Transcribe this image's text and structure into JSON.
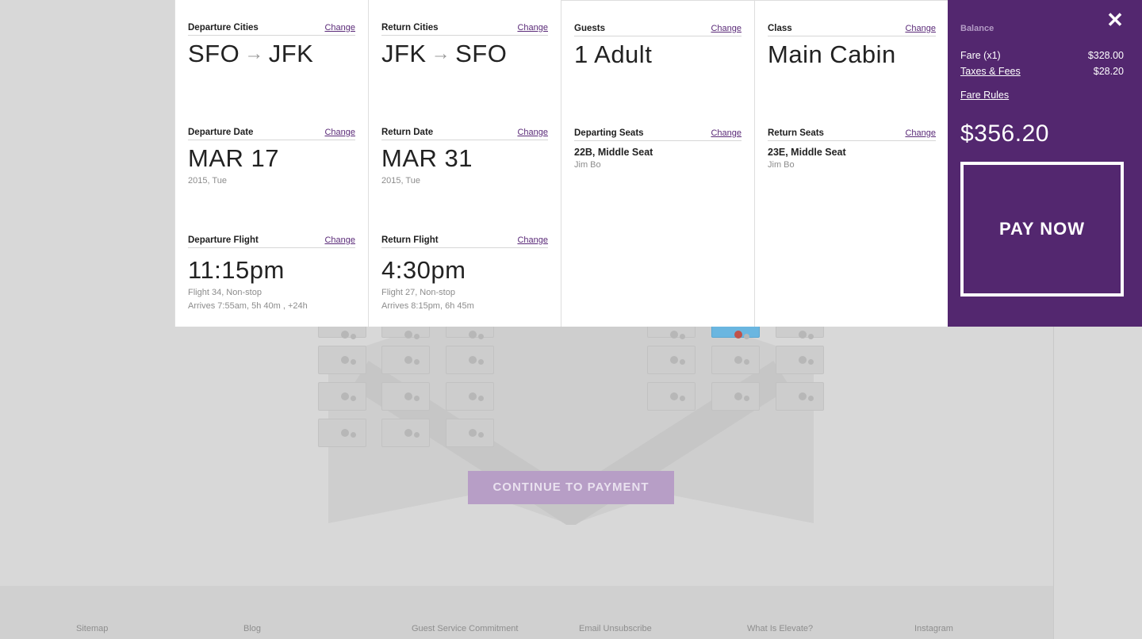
{
  "summary": {
    "departure_cities": {
      "title": "Departure Cities",
      "change": "Change",
      "from": "SFO",
      "to": "JFK"
    },
    "return_cities": {
      "title": "Return Cities",
      "change": "Change",
      "from": "JFK",
      "to": "SFO"
    },
    "guests": {
      "title": "Guests",
      "change": "Change",
      "value": "1 Adult"
    },
    "class": {
      "title": "Class",
      "change": "Change",
      "value": "Main Cabin"
    },
    "departure_date": {
      "title": "Departure Date",
      "change": "Change",
      "value": "MAR 17",
      "sub": "2015, Tue"
    },
    "return_date": {
      "title": "Return Date",
      "change": "Change",
      "value": "MAR 31",
      "sub": "2015, Tue"
    },
    "departing_seats": {
      "title": "Departing Seats",
      "change": "Change",
      "seat": "22B, Middle Seat",
      "passenger": "Jim Bo"
    },
    "return_seats": {
      "title": "Return Seats",
      "change": "Change",
      "seat": "23E, Middle Seat",
      "passenger": "Jim Bo"
    },
    "departure_flight": {
      "title": "Departure Flight",
      "change": "Change",
      "time": "11:15pm",
      "info": "Flight 34, Non-stop",
      "arrival": "Arrives 7:55am, 5h 40m , +24h"
    },
    "return_flight": {
      "title": "Return Flight",
      "change": "Change",
      "time": "4:30pm",
      "info": "Flight 27, Non-stop",
      "arrival": "Arrives 8:15pm, 6h 45m"
    }
  },
  "balance": {
    "label": "Balance",
    "fare_label": "Fare (x1)",
    "fare_value": "$328.00",
    "taxes_label": "Taxes & Fees",
    "taxes_value": "$28.20",
    "fare_rules": "Fare Rules",
    "total": "$356.20",
    "pay_label": "PAY NOW",
    "close": "✕"
  },
  "background": {
    "continue_label": "CONTINUE TO PAYMENT"
  },
  "footer": {
    "links": [
      "Sitemap",
      "Blog",
      "Guest Service Commitment",
      "Email Unsubscribe",
      "What Is Elevate?",
      "Instagram"
    ]
  },
  "colors": {
    "brand_purple": "#53276f",
    "link_purple": "#5a2a78",
    "selected_seat": "#6ab6e0"
  }
}
